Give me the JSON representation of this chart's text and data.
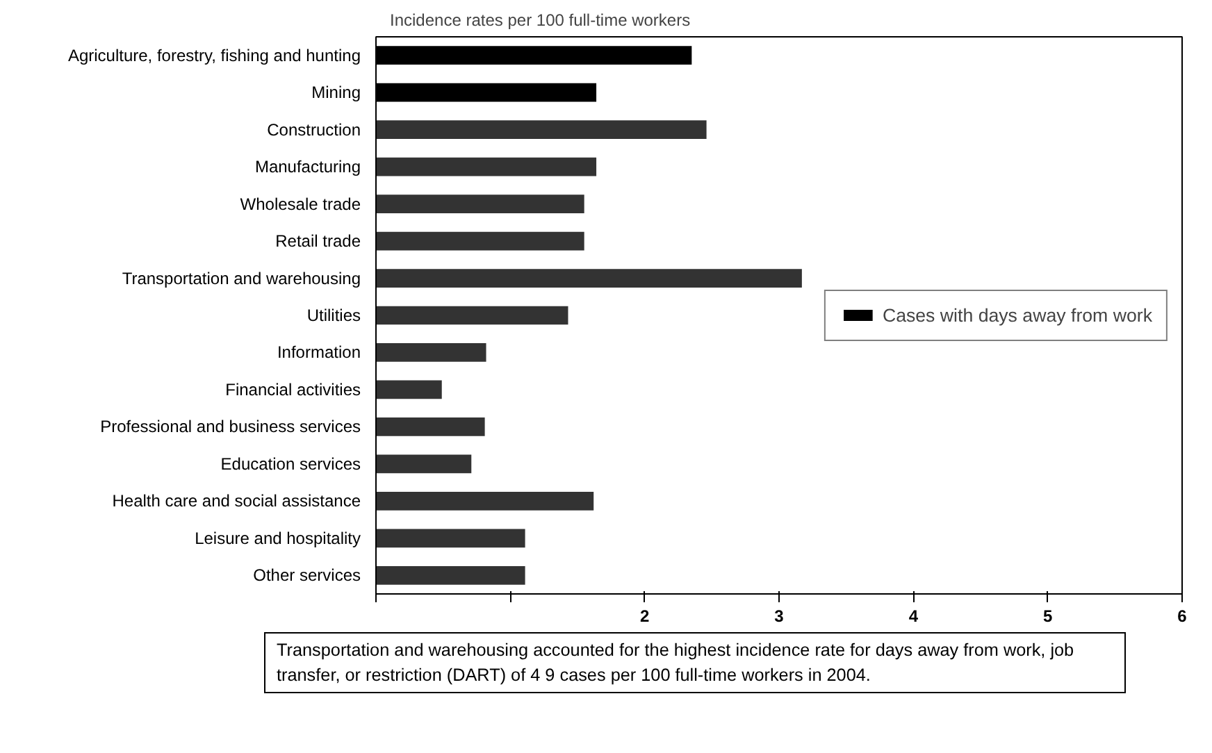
{
  "chart_data": {
    "type": "bar",
    "orientation": "horizontal",
    "title": "Incidence rates per 100 full-time workers",
    "categories": [
      "Agriculture, forestry, fishing and hunting",
      "Mining",
      "Construction",
      "Manufacturing",
      "Wholesale trade",
      "Retail trade",
      "Transportation and warehousing",
      "Utilities",
      "Information",
      "Financial activities",
      "Professional and business services",
      "Education services",
      "Health care and social assistance",
      "Leisure and hospitality",
      "Other services"
    ],
    "series": [
      {
        "name": "Cases with days away from work",
        "values": [
          2.35,
          1.64,
          2.46,
          1.64,
          1.55,
          1.55,
          3.17,
          1.43,
          0.82,
          0.49,
          0.81,
          0.71,
          1.62,
          1.11,
          1.11
        ],
        "colors": [
          "#000000",
          "#000000",
          "#333333",
          "#333333",
          "#333333",
          "#333333",
          "#333333",
          "#333333",
          "#333333",
          "#333333",
          "#333333",
          "#333333",
          "#333333",
          "#333333",
          "#333333"
        ]
      }
    ],
    "xlim": [
      0,
      6
    ],
    "xticks": [
      {
        "value": 0,
        "label": null
      },
      {
        "value": 1,
        "label": null
      },
      2,
      3,
      4,
      5,
      6
    ],
    "grid": false,
    "legend": "right",
    "annotations": [
      "Transportation and warehousing accounted for the highest incidence rate for days away from work, job transfer, or restriction (DART) of 4 9 cases per 100 full-time workers in 2004."
    ]
  }
}
